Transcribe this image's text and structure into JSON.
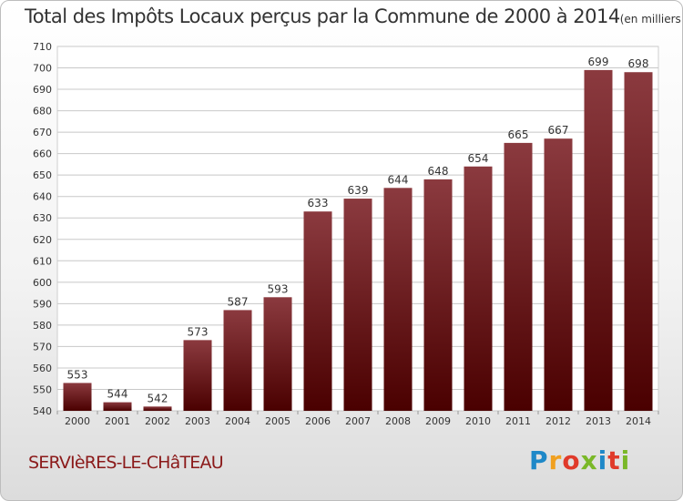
{
  "title": "Total des Impôts Locaux perçus par la Commune de 2000 à 2014",
  "unit": "(en milliers d'€)",
  "commune": "SERVIèRES-LE-CHâTEAU",
  "brand": {
    "text": "Proxiti",
    "letter_colors": [
      "#1e88c8",
      "#f0a020",
      "#e03a2a",
      "#7ab828",
      "#1e88c8",
      "#e03a2a",
      "#7ab828"
    ]
  },
  "colors": {
    "bar_top": "#8b3a3f",
    "bar_bottom": "#4a0000",
    "grid": "#c8c8c8",
    "commune_text": "#8b1a1a"
  },
  "chart_data": {
    "type": "bar",
    "title": "Total des Impôts Locaux perçus par la Commune de 2000 à 2014",
    "categories": [
      "2000",
      "2001",
      "2002",
      "2003",
      "2004",
      "2005",
      "2006",
      "2007",
      "2008",
      "2009",
      "2010",
      "2011",
      "2012",
      "2013",
      "2014"
    ],
    "values": [
      553,
      544,
      542,
      573,
      587,
      593,
      633,
      639,
      644,
      648,
      654,
      665,
      667,
      699,
      698
    ],
    "ylim": [
      540,
      710
    ],
    "yticks": [
      540,
      550,
      560,
      570,
      580,
      590,
      600,
      610,
      620,
      630,
      640,
      650,
      660,
      670,
      680,
      690,
      700,
      710
    ],
    "grid": true,
    "xlabel": "",
    "ylabel": ""
  }
}
